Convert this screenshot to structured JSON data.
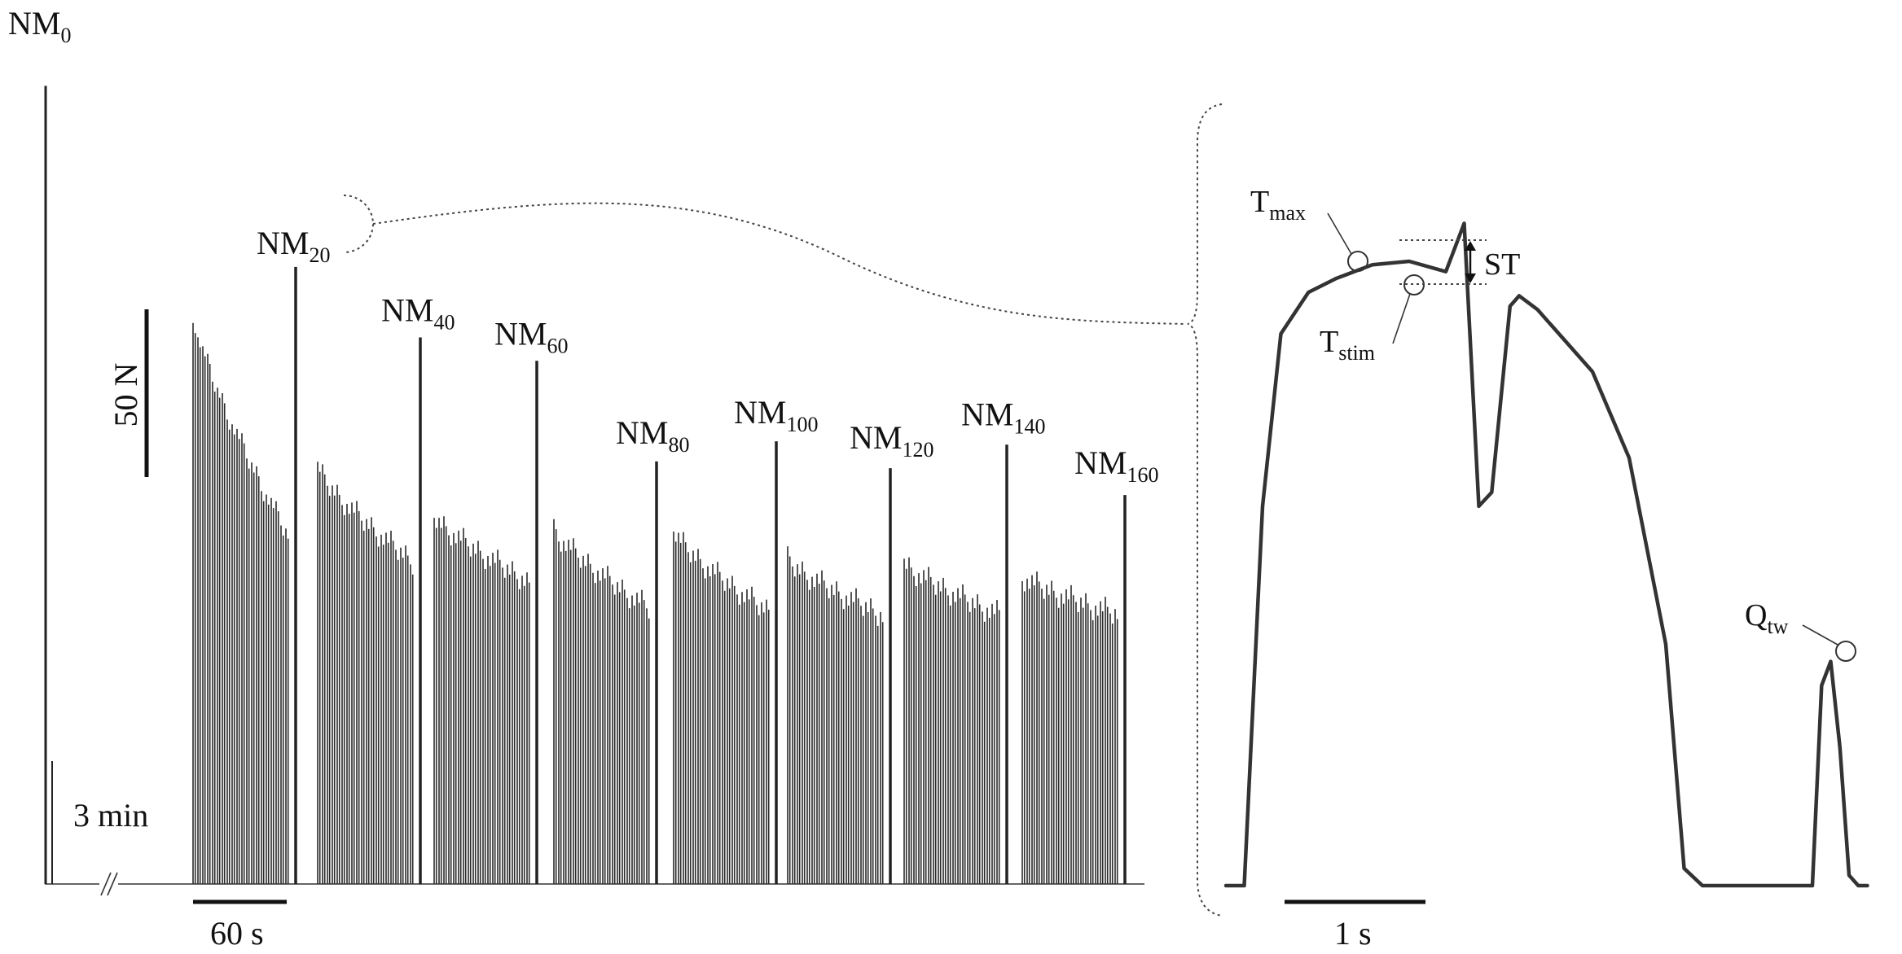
{
  "chart_data": [
    {
      "type": "bar",
      "panel": "left",
      "units_y": "N",
      "scale_bar_y": {
        "label": "50 N",
        "value": 50
      },
      "scale_bar_x": {
        "label": "60 s",
        "value": 60
      },
      "break_label": "3 min",
      "break_symbol": "//",
      "ylim": [
        0,
        240
      ],
      "initial_mvc": {
        "label_main": "NM",
        "label_sub": "0",
        "value": 238
      },
      "mvc_points": [
        {
          "label_main": "NM",
          "label_sub": "20",
          "value": 184
        },
        {
          "label_main": "NM",
          "label_sub": "40",
          "value": 163
        },
        {
          "label_main": "NM",
          "label_sub": "60",
          "value": 156
        },
        {
          "label_main": "NM",
          "label_sub": "80",
          "value": 126
        },
        {
          "label_main": "NM",
          "label_sub": "100",
          "value": 132
        },
        {
          "label_main": "NM",
          "label_sub": "120",
          "value": 124
        },
        {
          "label_main": "NM",
          "label_sub": "140",
          "value": 131
        },
        {
          "label_main": "NM",
          "label_sub": "160",
          "value": 116
        }
      ],
      "submaximal_blocks": [
        {
          "start": 170,
          "end": 106,
          "count": 20
        },
        {
          "start": 125,
          "end": 98,
          "count": 20
        },
        {
          "start": 111,
          "end": 92,
          "count": 20
        },
        {
          "start": 107,
          "end": 84,
          "count": 20
        },
        {
          "start": 106,
          "end": 83,
          "count": 20
        },
        {
          "start": 98,
          "end": 82,
          "count": 20
        },
        {
          "start": 97,
          "end": 82,
          "count": 20
        },
        {
          "start": 93,
          "end": 82,
          "count": 20
        }
      ]
    },
    {
      "type": "line",
      "panel": "right",
      "scale_bar_x": {
        "label": "1 s",
        "value": 1
      },
      "ylim": [
        0,
        240
      ],
      "x": [
        0,
        0.1,
        0.2,
        0.3,
        0.45,
        0.6,
        0.8,
        1.0,
        1.2,
        1.3,
        1.38,
        1.45,
        1.55,
        1.6,
        1.7,
        1.85,
        2.0,
        2.2,
        2.4,
        2.5,
        2.6,
        2.7,
        2.8,
        2.9,
        3.0,
        3.1,
        3.2,
        3.25,
        3.3,
        3.35,
        3.4,
        3.45,
        3.5
      ],
      "y": [
        0,
        0,
        110,
        160,
        172,
        176,
        180,
        181,
        178,
        192,
        110,
        114,
        168,
        171,
        167,
        158,
        149,
        124,
        70,
        5,
        0,
        0,
        0,
        0,
        0,
        0,
        0,
        58,
        65,
        40,
        3,
        0,
        0
      ],
      "annotations": [
        {
          "main": "T",
          "sub": "max"
        },
        {
          "main": "T",
          "sub": "stim"
        },
        {
          "main": "ST",
          "sub": ""
        },
        {
          "main": "Q",
          "sub": "tw"
        }
      ]
    }
  ]
}
